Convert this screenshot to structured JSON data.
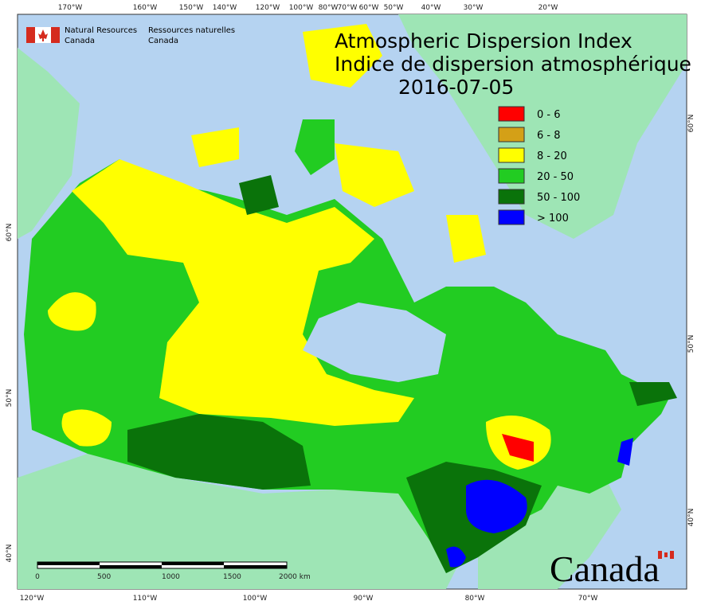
{
  "header": {
    "ministry_en": [
      "Natural Resources",
      "Canada"
    ],
    "ministry_fr": [
      "Ressources naturelles",
      "Canada"
    ]
  },
  "title": [
    "Atmospheric Dispersion Index",
    "Indice de dispersion atmosphérique"
  ],
  "date": "2016-07-05",
  "legend": [
    {
      "label": "0 - 6",
      "color": "#ff0000"
    },
    {
      "label": "6 - 8",
      "color": "#d4a017"
    },
    {
      "label": "8 - 20",
      "color": "#ffff00"
    },
    {
      "label": "20 - 50",
      "color": "#22cc22"
    },
    {
      "label": "50 - 100",
      "color": "#0a730a"
    },
    {
      "label": "> 100",
      "color": "#0000ff"
    }
  ],
  "top_longitudes": [
    "170°W",
    "160°W",
    "150°W",
    "140°W",
    "120°W",
    "100°W",
    "80°W",
    "70°W",
    "60°W",
    "50°W",
    "40°W",
    "30°W",
    "20°W"
  ],
  "bottom_longitudes": [
    "120°W",
    "110°W",
    "100°W",
    "90°W",
    "80°W",
    "70°W"
  ],
  "left_latitudes": [
    "60°N",
    "50°N",
    "40°N"
  ],
  "right_latitudes": [
    "60°N",
    "50°N",
    "40°N"
  ],
  "scale_labels": [
    "0",
    "500",
    "1000",
    "1500",
    "2000 km"
  ],
  "wordmark": "Canada"
}
